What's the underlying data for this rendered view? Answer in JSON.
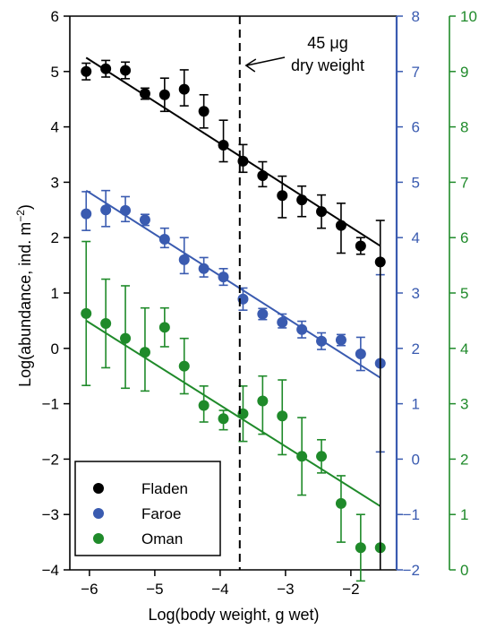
{
  "chart_data": {
    "type": "scatter",
    "xlabel": "Log(body weight, g wet)",
    "ylabel_text": "Log(abundance, ind. m",
    "ylabel_sup": "−2",
    "ylabel_close": ")",
    "xlim": [
      -6.3,
      -1.3
    ],
    "xticks": [
      -6,
      -5,
      -4,
      -3,
      -2
    ],
    "left_axis": {
      "ylim": [
        -4,
        6
      ],
      "ticks": [
        -4,
        -3,
        -2,
        -1,
        0,
        1,
        2,
        3,
        4,
        5,
        6
      ],
      "color": "#000000"
    },
    "right_axis_1": {
      "ylim": [
        -2,
        8
      ],
      "ticks": [
        -2,
        -1,
        0,
        1,
        2,
        3,
        4,
        5,
        6,
        7,
        8
      ],
      "color": "#3a5bb0"
    },
    "right_axis_2": {
      "ylim": [
        0,
        10
      ],
      "ticks": [
        0,
        1,
        2,
        3,
        4,
        5,
        6,
        7,
        8,
        9,
        10
      ],
      "color": "#1f8a2a"
    },
    "grid": false,
    "legend_position": "bottom-left",
    "annotation": {
      "line1": "45 μg",
      "line2": "dry weight",
      "x": -3.7
    },
    "x": [
      -6.05,
      -5.75,
      -5.45,
      -5.15,
      -4.85,
      -4.55,
      -4.25,
      -3.95,
      -3.65,
      -3.35,
      -3.05,
      -2.75,
      -2.45,
      -2.15,
      -1.85,
      -1.55
    ],
    "series": [
      {
        "name": "Fladen",
        "axis": "left",
        "color": "#000000",
        "y": [
          5.0,
          5.05,
          5.02,
          4.6,
          4.58,
          4.68,
          4.28,
          3.67,
          3.38,
          3.12,
          2.76,
          2.68,
          2.47,
          2.22,
          1.85,
          1.56
        ],
        "err_lo": [
          0.15,
          0.15,
          0.15,
          0.1,
          0.3,
          0.3,
          0.3,
          0.3,
          0.2,
          0.2,
          0.4,
          0.3,
          0.3,
          0.5,
          0.15,
          0.0
        ],
        "err_hi": [
          0.15,
          0.15,
          0.15,
          0.1,
          0.3,
          0.35,
          0.3,
          0.45,
          0.3,
          0.25,
          0.35,
          0.25,
          0.3,
          0.4,
          0.15,
          0.75
        ],
        "show": [
          true,
          true,
          true,
          true,
          true,
          true,
          true,
          true,
          true,
          true,
          true,
          true,
          true,
          true,
          true,
          true
        ],
        "fit": {
          "x": [
            -6.05,
            -1.55
          ],
          "y": [
            5.25,
            1.85
          ]
        }
      },
      {
        "name": "Faroe",
        "axis": "right1",
        "color": "#3a5bb0",
        "y": [
          4.43,
          4.5,
          4.49,
          4.32,
          3.97,
          3.6,
          3.44,
          3.29,
          2.89,
          2.62,
          2.47,
          2.34,
          2.13,
          2.15,
          1.9,
          1.73
        ],
        "err_lo": [
          0.3,
          0.3,
          0.2,
          0.1,
          0.15,
          0.25,
          0.15,
          0.15,
          0.2,
          0.1,
          0.1,
          0.15,
          0.15,
          0.1,
          0.3,
          1.6
        ],
        "err_hi": [
          0.4,
          0.35,
          0.25,
          0.1,
          0.2,
          0.4,
          0.2,
          0.15,
          0.2,
          0.1,
          0.15,
          0.15,
          0.15,
          0.1,
          0.3,
          1.6
        ],
        "show": [
          true,
          true,
          true,
          true,
          true,
          true,
          true,
          true,
          true,
          true,
          true,
          true,
          true,
          true,
          true,
          true
        ],
        "fit": {
          "x": [
            -6.05,
            -1.55
          ],
          "y": [
            4.85,
            1.47
          ]
        }
      },
      {
        "name": "Oman",
        "axis": "right2",
        "color": "#1f8a2a",
        "y": [
          4.63,
          4.45,
          4.18,
          3.93,
          4.38,
          3.68,
          2.97,
          2.73,
          2.82,
          3.05,
          2.78,
          2.05,
          2.05,
          1.2,
          0.4,
          0.4
        ],
        "err_lo": [
          1.3,
          0.8,
          0.9,
          0.7,
          0.35,
          0.5,
          0.3,
          0.2,
          0.5,
          0.6,
          0.7,
          0.7,
          0.3,
          0.7,
          0.6,
          0.0
        ],
        "err_hi": [
          1.3,
          0.8,
          0.95,
          0.8,
          0.35,
          0.5,
          0.35,
          0.15,
          0.5,
          0.45,
          0.65,
          0.7,
          0.3,
          0.5,
          0.6,
          0.0
        ],
        "show": [
          true,
          true,
          true,
          true,
          true,
          true,
          true,
          true,
          true,
          true,
          true,
          true,
          true,
          true,
          true,
          true
        ],
        "fit": {
          "x": [
            -6.05,
            -1.55
          ],
          "y": [
            4.5,
            1.15
          ]
        }
      }
    ]
  }
}
